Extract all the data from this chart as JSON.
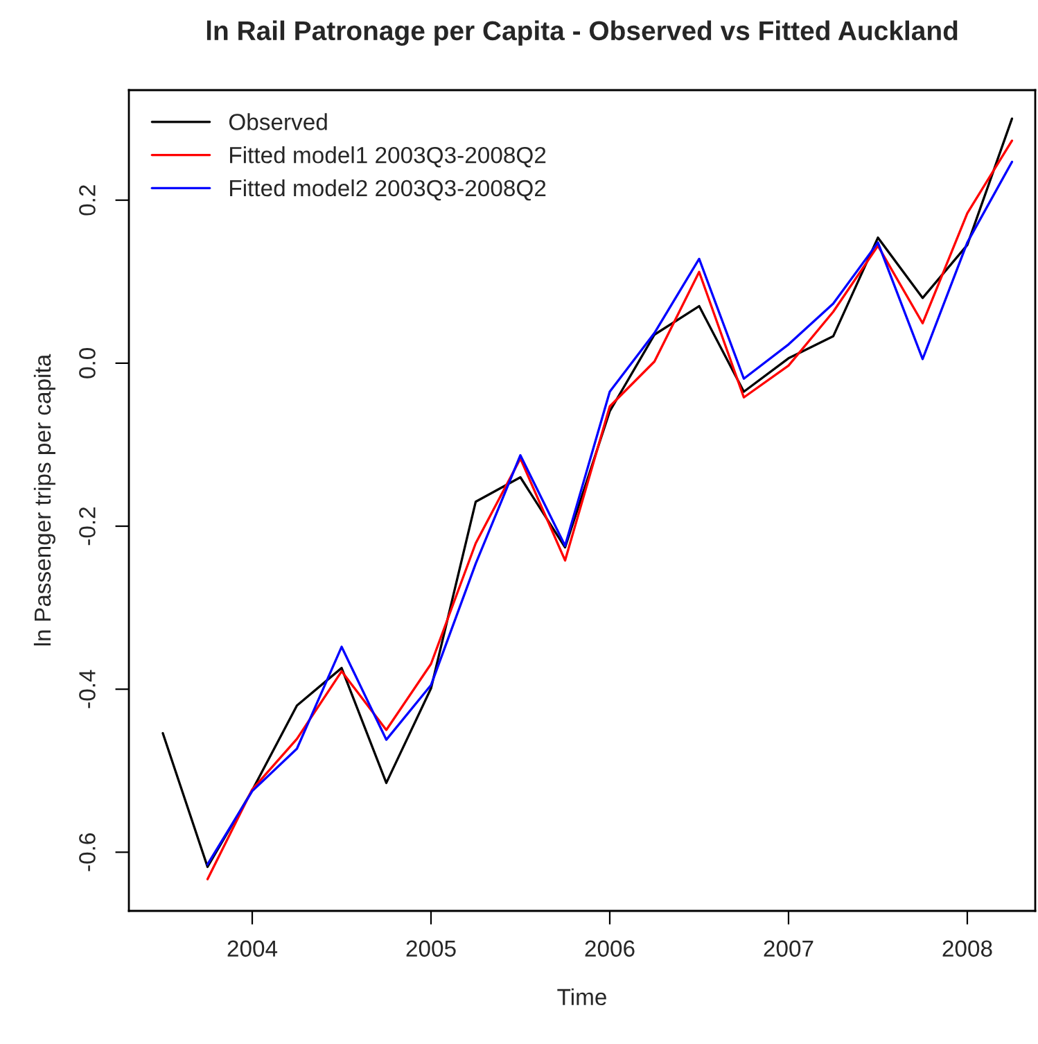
{
  "chart_data": {
    "type": "line",
    "title": "ln Rail Patronage per Capita - Observed vs Fitted Auckland",
    "xlabel": "Time",
    "ylabel": "ln Passenger trips per capita",
    "x": [
      2003.5,
      2003.75,
      2004.0,
      2004.25,
      2004.5,
      2004.75,
      2005.0,
      2005.25,
      2005.5,
      2005.75,
      2006.0,
      2006.25,
      2006.5,
      2006.75,
      2007.0,
      2007.25,
      2007.5,
      2007.75,
      2008.0,
      2008.25
    ],
    "series": [
      {
        "name": "Observed",
        "color": "#000000",
        "values": [
          -0.454,
          -0.618,
          -0.524,
          -0.42,
          -0.374,
          -0.515,
          -0.399,
          -0.17,
          -0.14,
          -0.226,
          -0.059,
          0.035,
          0.07,
          -0.035,
          0.006,
          0.033,
          0.154,
          0.08,
          0.145,
          0.3
        ]
      },
      {
        "name": "Fitted model1 2003Q3-2008Q2",
        "color": "#ff0000",
        "values": [
          null,
          -0.633,
          -0.523,
          -0.461,
          -0.378,
          -0.45,
          -0.369,
          -0.221,
          -0.117,
          -0.242,
          -0.053,
          0.002,
          0.112,
          -0.042,
          -0.003,
          0.063,
          0.144,
          0.049,
          0.184,
          0.273
        ]
      },
      {
        "name": "Fitted model2 2003Q3-2008Q2",
        "color": "#0000ff",
        "values": [
          null,
          -0.615,
          -0.525,
          -0.473,
          -0.348,
          -0.462,
          -0.395,
          -0.246,
          -0.113,
          -0.224,
          -0.035,
          0.037,
          0.128,
          -0.019,
          0.023,
          0.073,
          0.148,
          0.005,
          0.148,
          0.247
        ]
      }
    ],
    "xlim": [
      2003.31,
      2008.38
    ],
    "ylim": [
      -0.672,
      0.335
    ],
    "xticks": [
      2004,
      2005,
      2006,
      2007,
      2008
    ],
    "yticks": [
      {
        "value": -0.6,
        "label": "-0.6"
      },
      {
        "value": -0.4,
        "label": "-0.4"
      },
      {
        "value": -0.2,
        "label": "-0.2"
      },
      {
        "value": 0,
        "label": "0.0"
      },
      {
        "value": 0.2,
        "label": "0.2"
      }
    ],
    "grid": false,
    "legend": "top left"
  }
}
